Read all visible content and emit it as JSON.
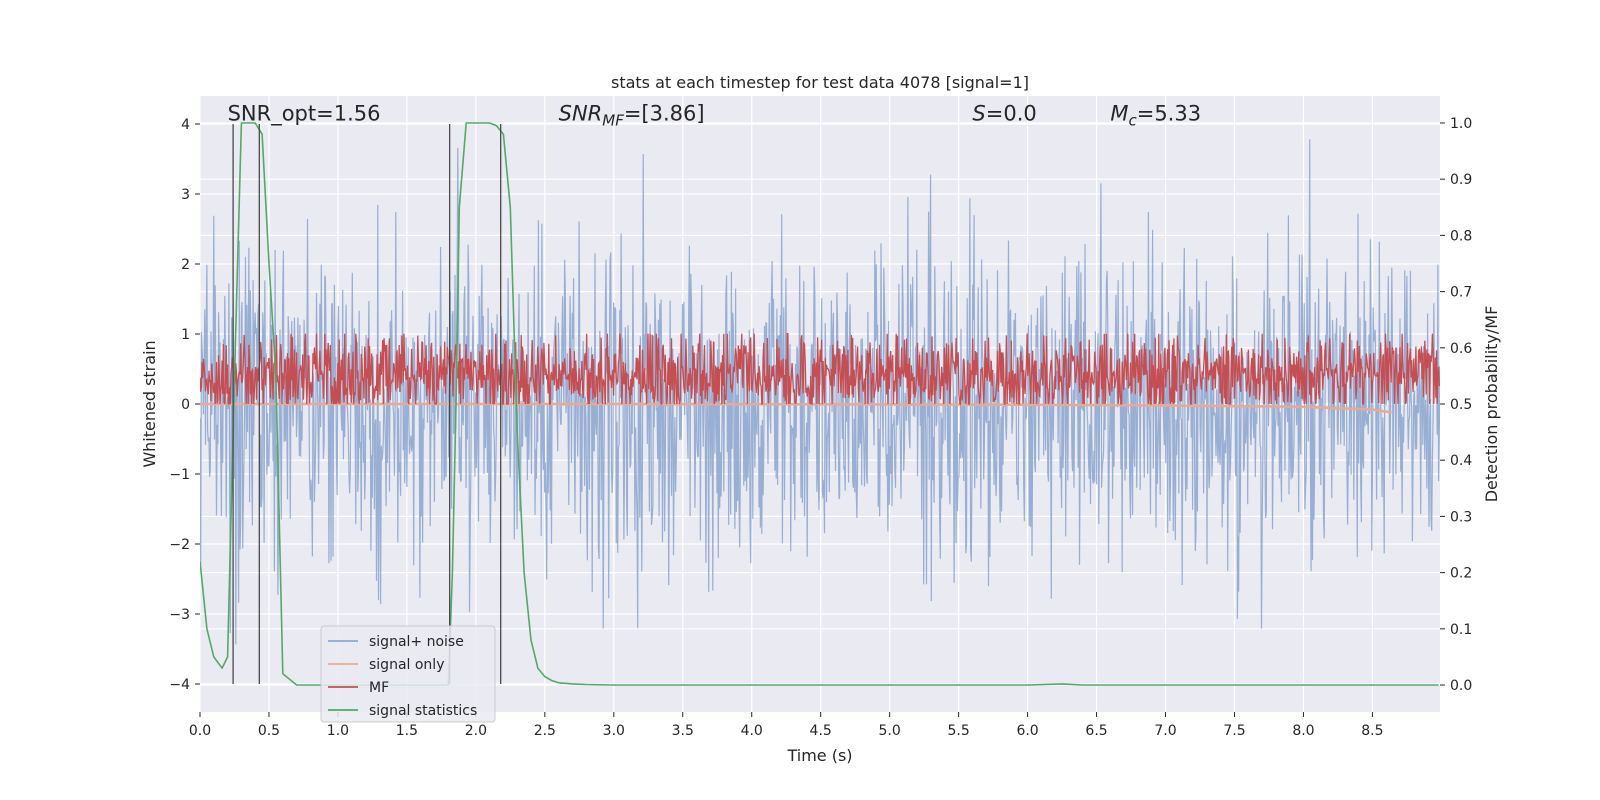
{
  "chart_data": {
    "type": "line",
    "title": "stats at each timestep for test data 4078 [signal=1]",
    "xlabel": "Time (s)",
    "ylabel": "Whitened strain",
    "y2label": "Detection probability/MF",
    "xlim": [
      0.0,
      8.99
    ],
    "ylim": [
      -4.4,
      4.4
    ],
    "y2lim": [
      -0.048,
      1.048
    ],
    "xticks": [
      "0.0",
      "0.5",
      "1.0",
      "1.5",
      "2.0",
      "2.5",
      "3.0",
      "3.5",
      "4.0",
      "4.5",
      "5.0",
      "5.5",
      "6.0",
      "6.5",
      "7.0",
      "7.5",
      "8.0",
      "8.5"
    ],
    "xtick_values": [
      0.0,
      0.5,
      1.0,
      1.5,
      2.0,
      2.5,
      3.0,
      3.5,
      4.0,
      4.5,
      5.0,
      5.5,
      6.0,
      6.5,
      7.0,
      7.5,
      8.0,
      8.5
    ],
    "yticks": [
      "−4",
      "−3",
      "−2",
      "−1",
      "0",
      "1",
      "2",
      "3",
      "4"
    ],
    "ytick_values": [
      -4,
      -3,
      -2,
      -1,
      0,
      1,
      2,
      3,
      4
    ],
    "y2ticks": [
      "0.0",
      "0.1",
      "0.2",
      "0.3",
      "0.4",
      "0.5",
      "0.6",
      "0.7",
      "0.8",
      "0.9",
      "1.0"
    ],
    "y2tick_values": [
      0.0,
      0.1,
      0.2,
      0.3,
      0.4,
      0.5,
      0.6,
      0.7,
      0.8,
      0.9,
      1.0
    ],
    "grid": true,
    "legend_position": "lower-left",
    "annotations": [
      {
        "text": "SNR_opt=1.56",
        "x": 0.2,
        "y": 4.05
      },
      {
        "text": "SNR_MF=[3.86]",
        "x": 2.6,
        "y": 4.05
      },
      {
        "text": "S=0.0",
        "x": 5.6,
        "y": 4.05
      },
      {
        "text": "M_c=5.33",
        "x": 6.6,
        "y": 4.05
      }
    ],
    "vertical_lines_x": [
      0.24,
      0.43,
      1.81,
      2.18
    ],
    "vertical_lines_range": [
      -4.0,
      4.0
    ],
    "series": [
      {
        "name": "signal+ noise",
        "color": "#8fa7cf",
        "axis": "left",
        "style": "noise",
        "samples": 1800,
        "amplitude_std": 1.1,
        "peak_max": 4.0,
        "peak_min": -3.95
      },
      {
        "name": "signal only",
        "color": "#e8a995",
        "axis": "left",
        "x": [
          0.0,
          3.0,
          6.0,
          7.0,
          8.0,
          8.5,
          8.64
        ],
        "y": [
          0.0,
          0.0,
          -0.01,
          -0.02,
          -0.04,
          -0.08,
          -0.12
        ]
      },
      {
        "name": "MF",
        "color": "#c44e52",
        "axis": "right",
        "style": "noise",
        "samples": 1800,
        "base": 0.55,
        "spread": 0.07,
        "peak_max": 0.625,
        "peak_min": 0.5
      },
      {
        "name": "signal statistics",
        "color": "#55a868",
        "axis": "right",
        "x": [
          0.0,
          0.05,
          0.1,
          0.16,
          0.2,
          0.25,
          0.3,
          0.35,
          0.4,
          0.45,
          0.5,
          0.55,
          0.6,
          0.7,
          0.8,
          1.0,
          1.5,
          1.7,
          1.8,
          1.83,
          1.86,
          1.88,
          1.93,
          2.0,
          2.1,
          2.15,
          2.2,
          2.25,
          2.3,
          2.35,
          2.4,
          2.45,
          2.5,
          2.55,
          2.6,
          2.7,
          2.8,
          3.0,
          4.0,
          5.0,
          6.0,
          6.25,
          6.4,
          7.0,
          8.0,
          8.98
        ],
        "y": [
          0.22,
          0.1,
          0.05,
          0.03,
          0.05,
          0.55,
          1.0,
          1.0,
          1.0,
          0.98,
          0.75,
          0.55,
          0.02,
          0.0,
          0.0,
          0.0,
          0.0,
          0.0,
          0.0,
          0.2,
          0.55,
          0.85,
          1.0,
          1.0,
          1.0,
          0.995,
          0.98,
          0.85,
          0.45,
          0.2,
          0.08,
          0.03,
          0.015,
          0.008,
          0.004,
          0.002,
          0.001,
          0.0,
          0.0,
          0.0,
          0.0,
          0.002,
          0.0,
          0.0,
          0.0,
          0.0
        ]
      }
    ]
  }
}
